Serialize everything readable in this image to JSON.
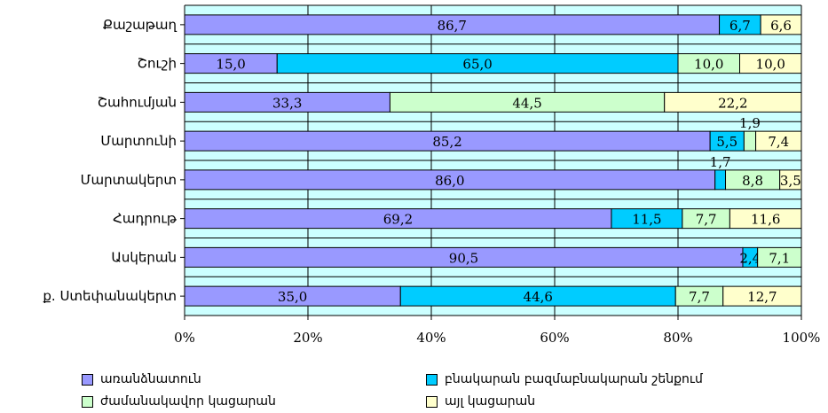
{
  "chart_data": {
    "type": "bar",
    "orientation": "horizontal",
    "stacked": "percent",
    "categories": [
      "Քաշաթաղ",
      "Շուշի",
      "Շահումյան",
      "Մարտունի",
      "Մարտակերտ",
      "Հադրութ",
      "Ասկերան",
      "ք. Ստեփանակերտ"
    ],
    "series": [
      {
        "name": "առանձնատուն",
        "color": "#9999ff",
        "values": [
          86.7,
          15.0,
          33.3,
          85.2,
          86.0,
          69.2,
          90.5,
          35.0
        ],
        "labels": [
          "86,7",
          "15,0",
          "33,3",
          "85,2",
          "86,0",
          "69,2",
          "90,5",
          "35,0"
        ]
      },
      {
        "name": "բնակարան բազմաբնակարան շենքում",
        "color": "#00ccff",
        "values": [
          6.7,
          65.0,
          0,
          5.5,
          1.7,
          11.5,
          2.4,
          44.6
        ],
        "labels": [
          "6,7",
          "65,0",
          "",
          "5,5",
          "1,7",
          "11,5",
          "2,4",
          "44,6"
        ]
      },
      {
        "name": "ժամանակավոր կացարան",
        "color": "#ccffcc",
        "values": [
          0,
          10.0,
          44.5,
          1.9,
          8.8,
          7.7,
          7.1,
          7.7
        ],
        "labels": [
          "",
          "10,0",
          "44,5",
          "1,9",
          "8,8",
          "7,7",
          "7,1",
          "7,7"
        ]
      },
      {
        "name": "այլ կացարան",
        "color": "#ffffcc",
        "values": [
          6.6,
          10.0,
          22.2,
          7.4,
          3.5,
          11.6,
          0,
          12.7
        ],
        "labels": [
          "6,6",
          "10,0",
          "22,2",
          "7,4",
          "3,5",
          "11,6",
          "",
          "12,7"
        ]
      }
    ],
    "xticks": [
      "0%",
      "20%",
      "40%",
      "60%",
      "80%",
      "100%"
    ],
    "xlim": [
      0,
      100
    ],
    "plot_background": "#ccffff",
    "grid": true,
    "legend_position": "bottom"
  }
}
